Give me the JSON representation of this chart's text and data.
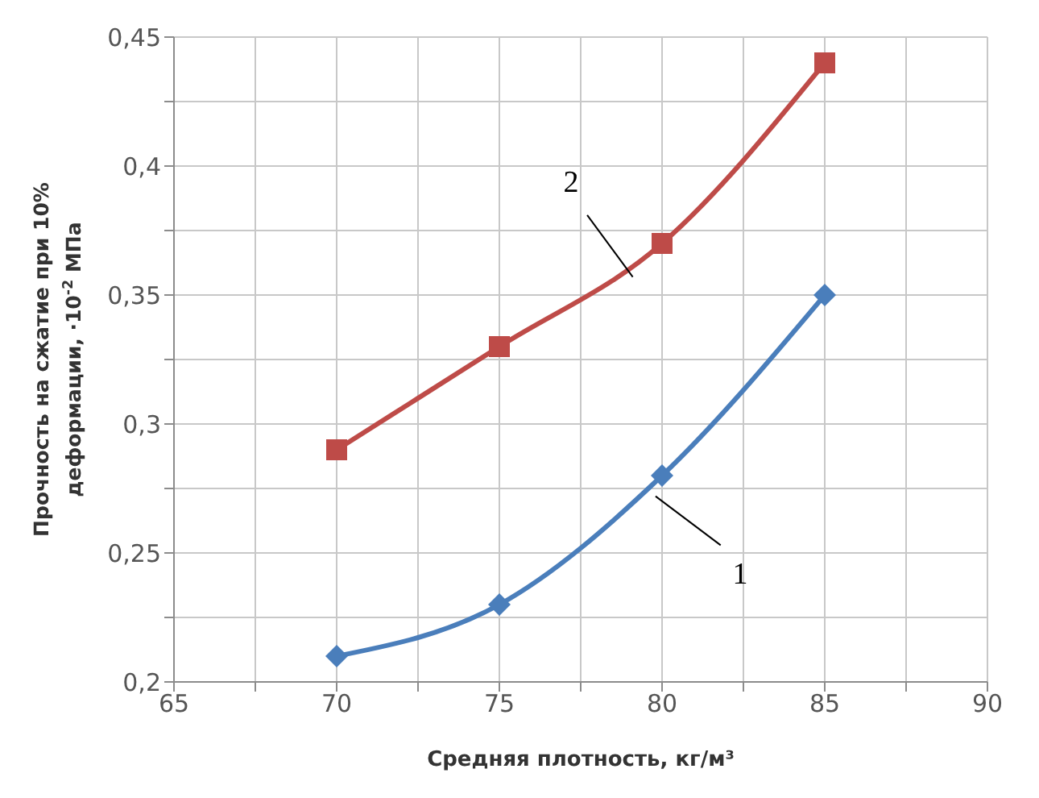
{
  "chart_data": {
    "type": "line",
    "xlabel": "Средняя плотность, кг/м³",
    "ylabel": "Прочность на сжатие при 10% деформации, ·10$^{-2}$ МПа",
    "x": [
      70,
      75,
      80,
      85
    ],
    "series": [
      {
        "name": "1",
        "color": "#4a7ebb",
        "marker": "diamond",
        "values": [
          0.21,
          0.23,
          0.28,
          0.35
        ]
      },
      {
        "name": "2",
        "color": "#be4b48",
        "marker": "square",
        "values": [
          0.29,
          0.33,
          0.37,
          0.44
        ]
      }
    ],
    "xlim": [
      65,
      90
    ],
    "xticks": [
      65,
      {
        "value": 67.5,
        "label": null
      },
      70,
      {
        "value": 72.5,
        "label": null
      },
      75,
      {
        "value": 77.5,
        "label": null
      },
      80,
      {
        "value": 82.5,
        "label": null
      },
      85,
      {
        "value": 87.5,
        "label": null
      },
      90
    ],
    "ylim": [
      0.2,
      0.45
    ],
    "yticks": [
      {
        "value": 0.2,
        "label": "0,2"
      },
      {
        "value": 0.225,
        "label": null
      },
      {
        "value": 0.25,
        "label": "0,25"
      },
      {
        "value": 0.275,
        "label": null
      },
      {
        "value": 0.3,
        "label": "0,3"
      },
      {
        "value": 0.325,
        "label": null
      },
      {
        "value": 0.35,
        "label": "0,35"
      },
      {
        "value": 0.375,
        "label": null
      },
      {
        "value": 0.4,
        "label": "0,4"
      },
      {
        "value": 0.425,
        "label": null
      },
      {
        "value": 0.45,
        "label": "0,45"
      }
    ],
    "grid": true,
    "line_style": "solid"
  }
}
